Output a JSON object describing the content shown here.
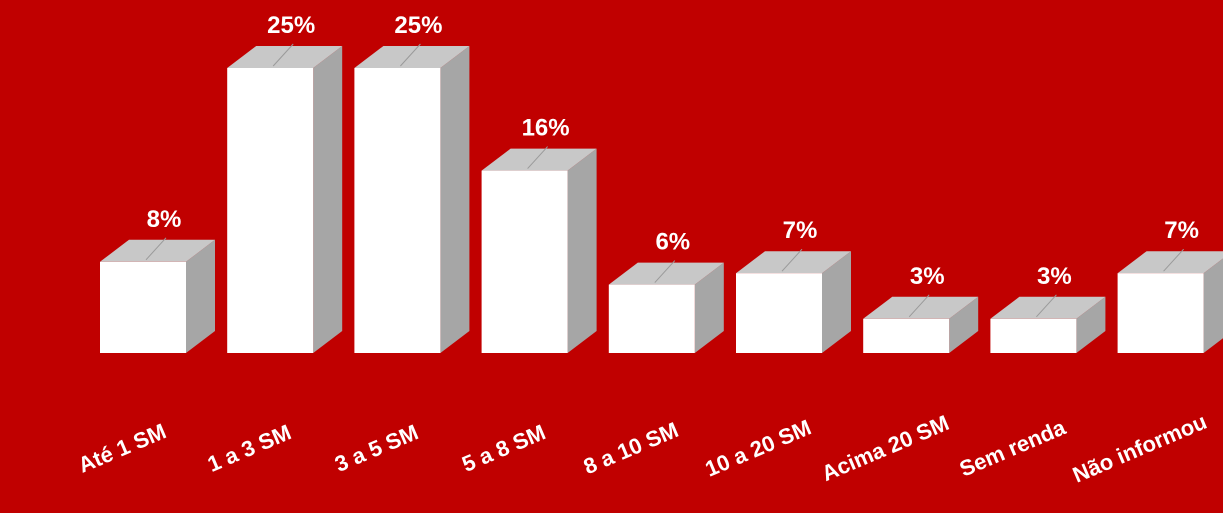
{
  "colors": {
    "background": "#c00000",
    "bar_front": "#ffffff",
    "bar_top": "#c8c8c8",
    "bar_side": "#a6a6a6",
    "text": "#ffffff"
  },
  "chart_data": {
    "type": "bar",
    "style": "3d-column",
    "title": "",
    "xlabel": "",
    "ylabel": "",
    "categories": [
      "Até 1 SM",
      "1 a 3 SM",
      "3 a 5 SM",
      "5 a 8 SM",
      "8 a 10 SM",
      "10 a 20 SM",
      "Acima 20 SM",
      "Sem renda",
      "Não informou"
    ],
    "values": [
      8,
      25,
      25,
      16,
      6,
      7,
      3,
      3,
      7
    ],
    "data_labels": [
      "8%",
      "25%",
      "25%",
      "16%",
      "6%",
      "7%",
      "3%",
      "3%",
      "7%"
    ],
    "unit": "%",
    "ylim": [
      0,
      25
    ],
    "grid": false,
    "legend": "none"
  }
}
